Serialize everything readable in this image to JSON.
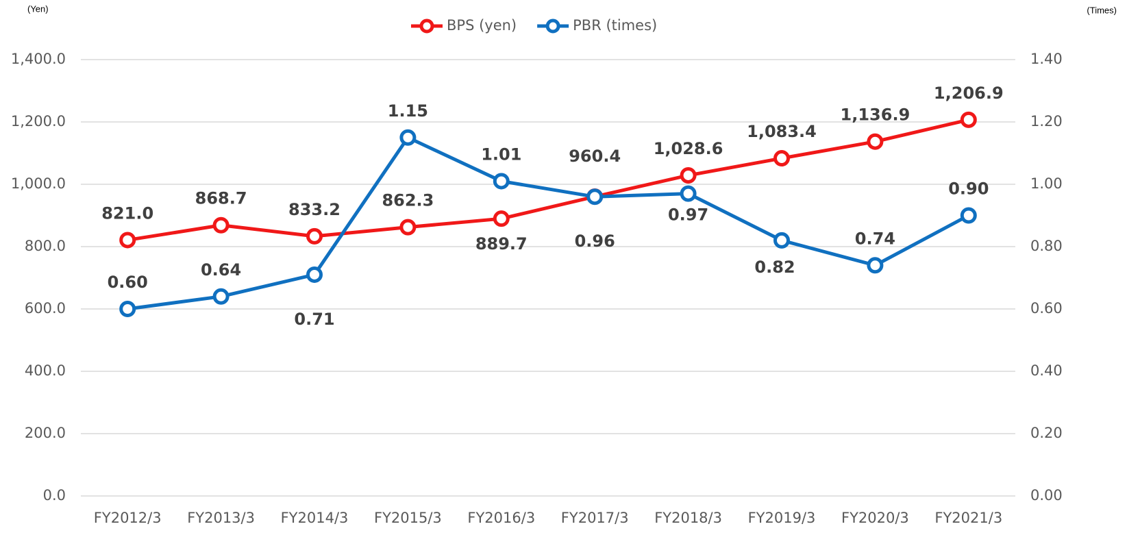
{
  "chart_data": {
    "type": "line",
    "y_axis_label": "(Yen)",
    "y2_axis_label": "(Times)",
    "categories": [
      "FY2012/3",
      "FY2013/3",
      "FY2014/3",
      "FY2015/3",
      "FY2016/3",
      "FY2017/3",
      "FY2018/3",
      "FY2019/3",
      "FY2020/3",
      "FY2021/3"
    ],
    "series": [
      {
        "name": "BPS (yen)",
        "color": "#f01818",
        "axis": "y",
        "values": [
          821.0,
          868.7,
          833.2,
          862.3,
          889.7,
          960.4,
          1028.6,
          1083.4,
          1136.9,
          1206.9
        ],
        "value_labels": [
          "821.0",
          "868.7",
          "833.2",
          "862.3",
          "889.7",
          "960.4",
          "1,028.6",
          "1,083.4",
          "1,136.9",
          "1,206.9"
        ]
      },
      {
        "name": "PBR (times)",
        "color": "#1070c0",
        "axis": "y2",
        "values": [
          0.6,
          0.64,
          0.71,
          1.15,
          1.01,
          0.96,
          0.97,
          0.82,
          0.74,
          0.9
        ],
        "value_labels": [
          "0.60",
          "0.64",
          "0.71",
          "1.15",
          "1.01",
          "0.96",
          "0.97",
          "0.82",
          "0.74",
          "0.90"
        ]
      }
    ],
    "ylim": [
      0,
      1400
    ],
    "yticks": [
      {
        "value": 0,
        "label": "0.0"
      },
      {
        "value": 200,
        "label": "200.0"
      },
      {
        "value": 400,
        "label": "400.0"
      },
      {
        "value": 600,
        "label": "600.0"
      },
      {
        "value": 800,
        "label": "800.0"
      },
      {
        "value": 1000,
        "label": "1,000.0"
      },
      {
        "value": 1200,
        "label": "1,200.0"
      },
      {
        "value": 1400,
        "label": "1,400.0"
      }
    ],
    "y2lim": [
      0,
      1.4
    ],
    "y2ticks": [
      {
        "value": 0,
        "label": "0.00"
      },
      {
        "value": 0.2,
        "label": "0.20"
      },
      {
        "value": 0.4,
        "label": "0.40"
      },
      {
        "value": 0.6,
        "label": "0.60"
      },
      {
        "value": 0.8,
        "label": "0.80"
      },
      {
        "value": 1.0,
        "label": "1.00"
      },
      {
        "value": 1.2,
        "label": "1.20"
      },
      {
        "value": 1.4,
        "label": "1.40"
      }
    ],
    "grid": true,
    "legend": "top"
  }
}
